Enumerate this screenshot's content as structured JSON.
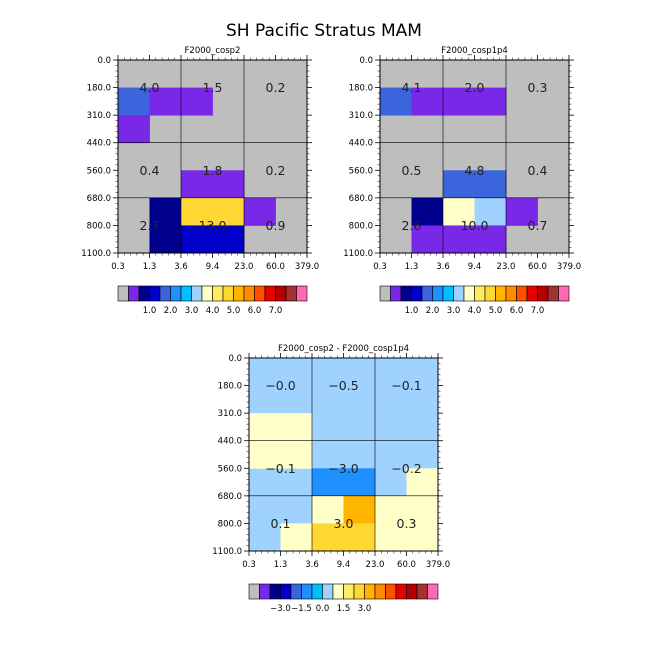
{
  "title": "SH Pacific Stratus MAM",
  "chart_data": [
    {
      "type": "heatmap",
      "title": "F2000_cosp2",
      "x_ticks": [
        "0.3",
        "1.3",
        "3.6",
        "9.4",
        "23.0",
        "60.0",
        "379.0"
      ],
      "y_ticks": [
        "0.0",
        "180.0",
        "310.0",
        "440.0",
        "560.0",
        "680.0",
        "800.0",
        "1100.0"
      ],
      "cells": [
        {
          "x": 0,
          "y": 1,
          "color": "#3c64dc"
        },
        {
          "x": 1,
          "y": 1,
          "color": "#7828e6"
        },
        {
          "x": 2,
          "y": 1,
          "color": "#7828e6"
        },
        {
          "x": 0,
          "y": 2,
          "color": "#7828e6"
        },
        {
          "x": 2,
          "y": 4,
          "color": "#7828e6"
        },
        {
          "x": 3,
          "y": 4,
          "color": "#7828e6"
        },
        {
          "x": 1,
          "y": 5,
          "color": "#00008c"
        },
        {
          "x": 2,
          "y": 5,
          "color": "#ffd732"
        },
        {
          "x": 3,
          "y": 5,
          "color": "#ffd732"
        },
        {
          "x": 4,
          "y": 5,
          "color": "#7828e6"
        },
        {
          "x": 1,
          "y": 6,
          "color": "#00008c"
        },
        {
          "x": 2,
          "y": 6,
          "color": "#0000c8"
        },
        {
          "x": 3,
          "y": 6,
          "color": "#0000c8"
        }
      ],
      "labels": [
        {
          "text": "4.0",
          "x": 1,
          "y": 1
        },
        {
          "text": "1.5",
          "x": 3,
          "y": 1
        },
        {
          "text": "0.2",
          "x": 5,
          "y": 1
        },
        {
          "text": "0.4",
          "x": 1,
          "y": 4
        },
        {
          "text": "1.8",
          "x": 3,
          "y": 4
        },
        {
          "text": "0.2",
          "x": 5,
          "y": 4
        },
        {
          "text": "2.7",
          "x": 1,
          "y": 6
        },
        {
          "text": "13.0",
          "x": 3,
          "y": 6
        },
        {
          "text": "0.9",
          "x": 5,
          "y": 6
        }
      ],
      "colorbar": {
        "colors": [
          "#bebebe",
          "#7828e6",
          "#00008c",
          "#0000c8",
          "#3c64dc",
          "#1e90ff",
          "#00bfff",
          "#a0d2ff",
          "#ffffc8",
          "#ffeb64",
          "#ffd732",
          "#ffb400",
          "#ff8c00",
          "#ff5000",
          "#e60000",
          "#b40000",
          "#a03232",
          "#ff69b4"
        ],
        "labels": [
          {
            "text": "1.0",
            "boundary": 3
          },
          {
            "text": "2.0",
            "boundary": 5
          },
          {
            "text": "3.0",
            "boundary": 7
          },
          {
            "text": "4.0",
            "boundary": 9
          },
          {
            "text": "5.0",
            "boundary": 11
          },
          {
            "text": "6.0",
            "boundary": 13
          },
          {
            "text": "7.0",
            "boundary": 15
          }
        ]
      }
    },
    {
      "type": "heatmap",
      "title": "F2000_cosp1p4",
      "x_ticks": [
        "0.3",
        "1.3",
        "3.6",
        "9.4",
        "23.0",
        "60.0",
        "379.0"
      ],
      "y_ticks": [
        "0.0",
        "180.0",
        "310.0",
        "440.0",
        "560.0",
        "680.0",
        "800.0",
        "1100.0"
      ],
      "cells": [
        {
          "x": 0,
          "y": 1,
          "color": "#3c64dc"
        },
        {
          "x": 1,
          "y": 1,
          "color": "#7828e6"
        },
        {
          "x": 2,
          "y": 1,
          "color": "#7828e6"
        },
        {
          "x": 3,
          "y": 1,
          "color": "#7828e6"
        },
        {
          "x": 2,
          "y": 4,
          "color": "#3c64dc"
        },
        {
          "x": 3,
          "y": 4,
          "color": "#3c64dc"
        },
        {
          "x": 1,
          "y": 5,
          "color": "#00008c"
        },
        {
          "x": 2,
          "y": 5,
          "color": "#ffffc8"
        },
        {
          "x": 3,
          "y": 5,
          "color": "#a0d2ff"
        },
        {
          "x": 4,
          "y": 5,
          "color": "#7828e6"
        },
        {
          "x": 1,
          "y": 6,
          "color": "#7828e6"
        },
        {
          "x": 2,
          "y": 6,
          "color": "#7828e6"
        },
        {
          "x": 3,
          "y": 6,
          "color": "#7828e6"
        }
      ],
      "labels": [
        {
          "text": "4.1",
          "x": 1,
          "y": 1
        },
        {
          "text": "2.0",
          "x": 3,
          "y": 1
        },
        {
          "text": "0.3",
          "x": 5,
          "y": 1
        },
        {
          "text": "0.5",
          "x": 1,
          "y": 4
        },
        {
          "text": "4.8",
          "x": 3,
          "y": 4
        },
        {
          "text": "0.4",
          "x": 5,
          "y": 4
        },
        {
          "text": "2.6",
          "x": 1,
          "y": 6
        },
        {
          "text": "10.0",
          "x": 3,
          "y": 6
        },
        {
          "text": "0.7",
          "x": 5,
          "y": 6
        }
      ],
      "colorbar": {
        "colors": [
          "#bebebe",
          "#7828e6",
          "#00008c",
          "#0000c8",
          "#3c64dc",
          "#1e90ff",
          "#00bfff",
          "#a0d2ff",
          "#ffffc8",
          "#ffeb64",
          "#ffd732",
          "#ffb400",
          "#ff8c00",
          "#ff5000",
          "#e60000",
          "#b40000",
          "#a03232",
          "#ff69b4"
        ],
        "labels": [
          {
            "text": "1.0",
            "boundary": 3
          },
          {
            "text": "2.0",
            "boundary": 5
          },
          {
            "text": "3.0",
            "boundary": 7
          },
          {
            "text": "4.0",
            "boundary": 9
          },
          {
            "text": "5.0",
            "boundary": 11
          },
          {
            "text": "6.0",
            "boundary": 13
          },
          {
            "text": "7.0",
            "boundary": 15
          }
        ]
      }
    },
    {
      "type": "heatmap",
      "title": "F2000_cosp2 - F2000_cosp1p4",
      "x_ticks": [
        "0.3",
        "1.3",
        "3.6",
        "9.4",
        "23.0",
        "60.0",
        "379.0"
      ],
      "y_ticks": [
        "0.0",
        "180.0",
        "310.0",
        "440.0",
        "560.0",
        "680.0",
        "800.0",
        "1100.0"
      ],
      "background": "#a0d2ff",
      "cells": [
        {
          "x": 0,
          "y": 2,
          "color": "#ffffc8"
        },
        {
          "x": 1,
          "y": 2,
          "color": "#ffffc8"
        },
        {
          "x": 0,
          "y": 3,
          "color": "#ffffc8"
        },
        {
          "x": 1,
          "y": 3,
          "color": "#ffffc8"
        },
        {
          "x": 2,
          "y": 4,
          "color": "#1e90ff"
        },
        {
          "x": 3,
          "y": 4,
          "color": "#1e90ff"
        },
        {
          "x": 5,
          "y": 4,
          "color": "#ffffc8"
        },
        {
          "x": 2,
          "y": 5,
          "color": "#ffffc8"
        },
        {
          "x": 3,
          "y": 5,
          "color": "#ffb400"
        },
        {
          "x": 4,
          "y": 5,
          "color": "#ffffc8"
        },
        {
          "x": 5,
          "y": 5,
          "color": "#ffffc8"
        },
        {
          "x": 1,
          "y": 6,
          "color": "#ffffc8"
        },
        {
          "x": 2,
          "y": 6,
          "color": "#ffd732"
        },
        {
          "x": 3,
          "y": 6,
          "color": "#ffd732"
        },
        {
          "x": 4,
          "y": 6,
          "color": "#ffffc8"
        },
        {
          "x": 5,
          "y": 6,
          "color": "#ffffc8"
        }
      ],
      "labels": [
        {
          "text": "−0.0",
          "x": 1,
          "y": 1
        },
        {
          "text": "−0.5",
          "x": 3,
          "y": 1
        },
        {
          "text": "−0.1",
          "x": 5,
          "y": 1
        },
        {
          "text": "−0.1",
          "x": 1,
          "y": 4
        },
        {
          "text": "−3.0",
          "x": 3,
          "y": 4
        },
        {
          "text": "−0.2",
          "x": 5,
          "y": 4
        },
        {
          "text": "0.1",
          "x": 1,
          "y": 6
        },
        {
          "text": "3.0",
          "x": 3,
          "y": 6
        },
        {
          "text": "0.3",
          "x": 5,
          "y": 6
        }
      ],
      "colorbar": {
        "colors": [
          "#bebebe",
          "#7828e6",
          "#00008c",
          "#0000c8",
          "#3c64dc",
          "#1e90ff",
          "#00bfff",
          "#a0d2ff",
          "#ffffc8",
          "#ffeb64",
          "#ffd732",
          "#ffb400",
          "#ff8c00",
          "#ff5000",
          "#e60000",
          "#b40000",
          "#a03232",
          "#ff69b4"
        ],
        "labels": [
          {
            "text": "−3.0",
            "boundary": 3
          },
          {
            "text": "−1.5",
            "boundary": 5
          },
          {
            "text": "0.0",
            "boundary": 7
          },
          {
            "text": "1.5",
            "boundary": 9
          },
          {
            "text": "3.0",
            "boundary": 11
          }
        ]
      }
    }
  ]
}
